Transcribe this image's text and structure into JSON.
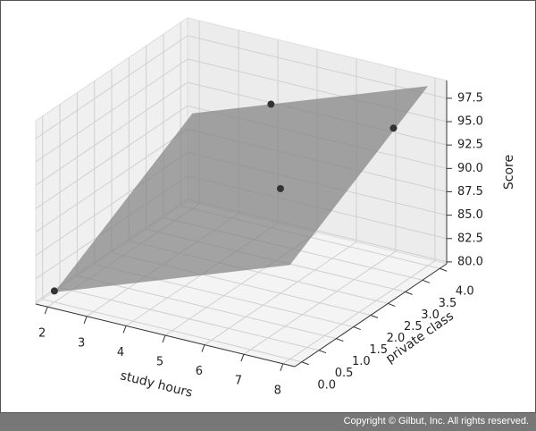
{
  "chart_data": {
    "type": "scatter3d",
    "x_label": "study hours",
    "y_label": "private class",
    "z_label": "Score",
    "x": [
      2,
      4,
      6,
      8
    ],
    "y": [
      0,
      4,
      2,
      3
    ],
    "z": [
      81,
      93,
      91,
      97
    ],
    "color": "#333333",
    "plane": {
      "x": [
        2,
        8
      ],
      "y": [
        0,
        4
      ],
      "z": [
        [
          80.857,
          89.857
        ],
        [
          90.0,
          99.0
        ]
      ],
      "color": "#808080"
    },
    "xlim": [
      1.7,
      8.3
    ],
    "ylim": [
      -0.2,
      4.2
    ],
    "zlim": [
      79.8,
      99.4
    ],
    "xticks": [
      2,
      3,
      4,
      5,
      6,
      7,
      8
    ],
    "yticks": [
      {
        "value": 0,
        "label": "0.0"
      },
      0.5,
      {
        "value": 1,
        "label": "1.0"
      },
      1.5,
      {
        "value": 2,
        "label": "2.0"
      },
      2.5,
      {
        "value": 3,
        "label": "3.0"
      },
      3.5,
      {
        "value": 4,
        "label": "4.0"
      }
    ],
    "zticks": [
      {
        "value": 80,
        "label": "80.0"
      },
      82.5,
      {
        "value": 85,
        "label": "85.0"
      },
      87.5,
      {
        "value": 90,
        "label": "90.0"
      },
      92.5,
      {
        "value": 95,
        "label": "95.0"
      },
      97.5
    ],
    "grid": true
  },
  "footer": "Copyright © Gilbut, Inc. All rights reserved."
}
